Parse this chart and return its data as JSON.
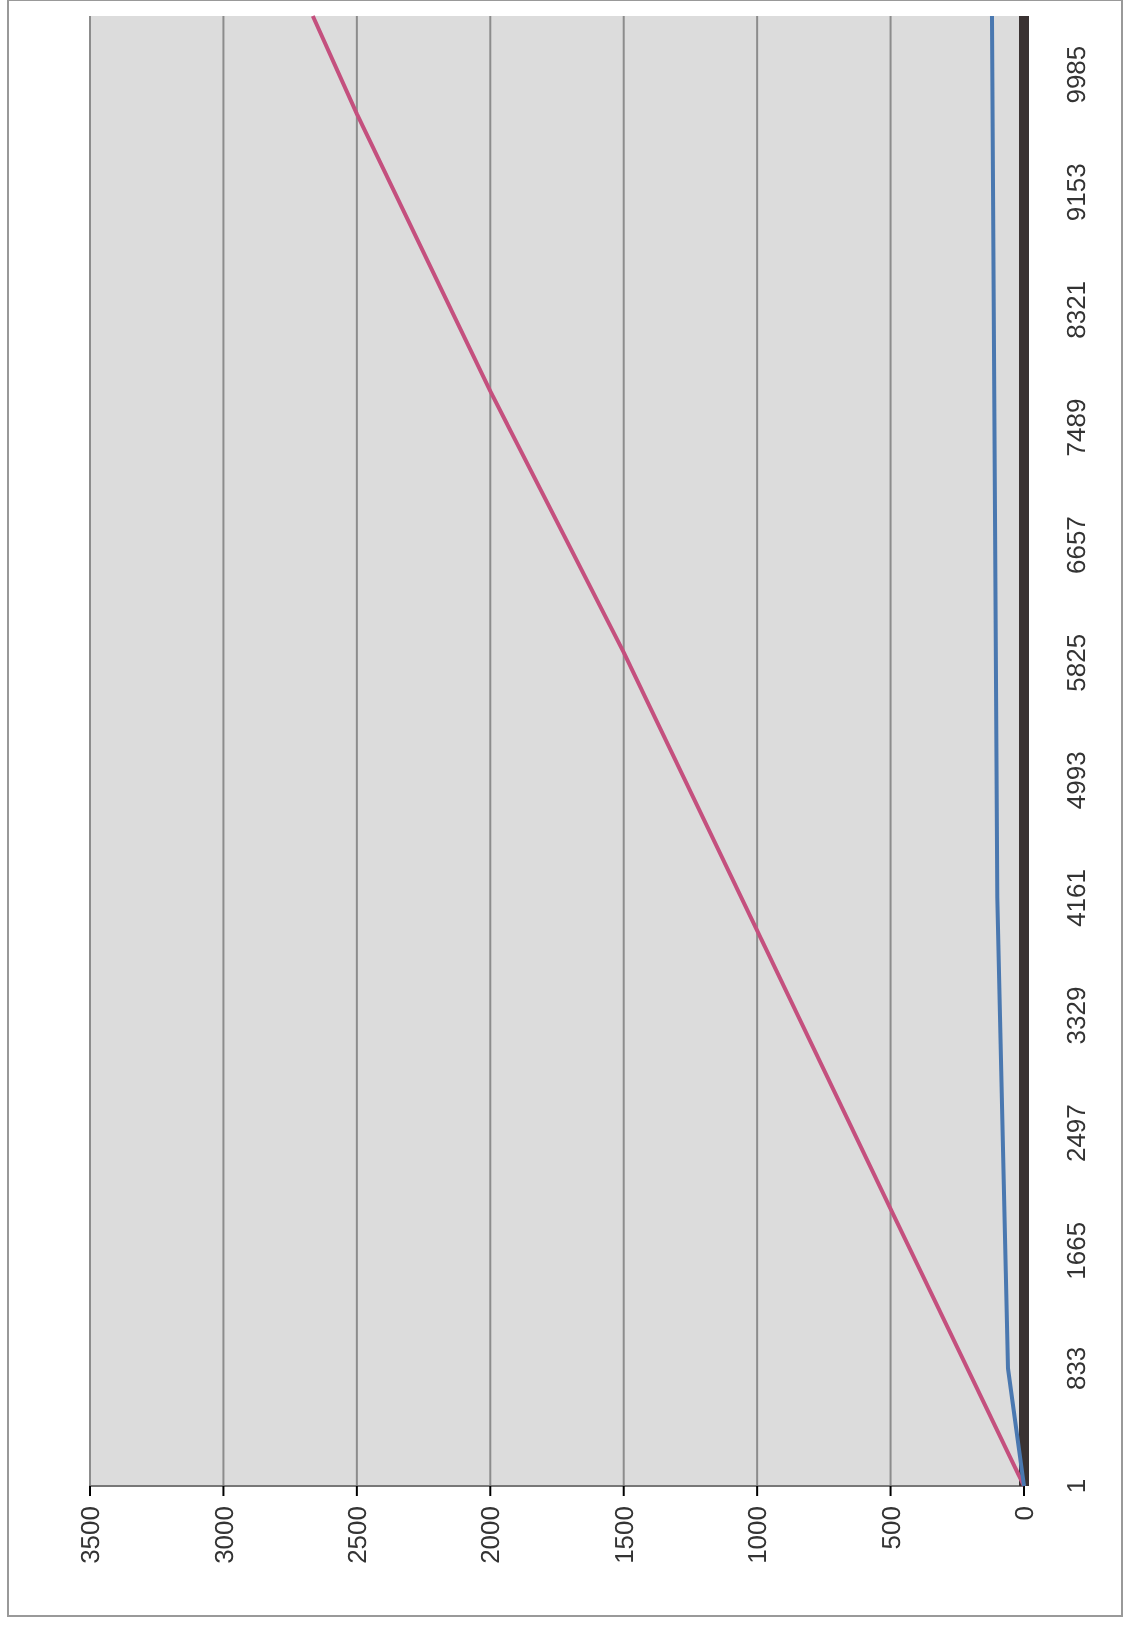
{
  "chart_data": {
    "type": "line",
    "xlim": [
      3500,
      0
    ],
    "ylim": [
      1,
      10400
    ],
    "xticks": [
      0,
      500,
      1000,
      1500,
      2000,
      2500,
      3000,
      3500
    ],
    "yticks": [
      1,
      833,
      1665,
      2497,
      3329,
      4161,
      4993,
      5825,
      6657,
      7489,
      8321,
      9153,
      9985
    ],
    "grid": "x",
    "marker": "none",
    "series": [
      {
        "color": "#c4507e",
        "x": [
          0,
          500,
          1500,
          2000,
          2500,
          2665
        ],
        "values": [
          1,
          1962,
          5898,
          7746,
          9708,
          10400
        ]
      },
      {
        "color": "#4a78b0",
        "x": [
          0,
          60,
          100,
          120
        ],
        "values": [
          1,
          833,
          4161,
          10400
        ]
      }
    ]
  }
}
